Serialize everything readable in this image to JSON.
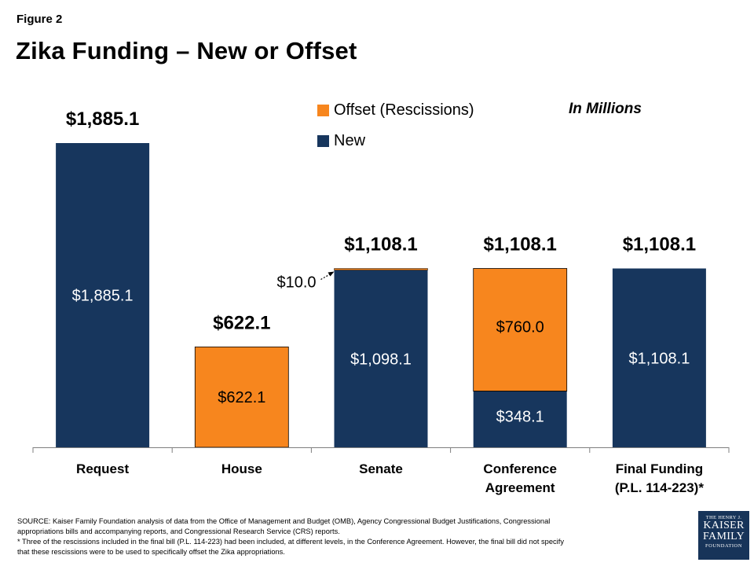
{
  "figure_label": "Figure 2",
  "title": "Zika Funding – New or Offset",
  "units_note": "In Millions",
  "legend": [
    {
      "label": "Offset (Rescissions)",
      "color": "#F7861E"
    },
    {
      "label": "New",
      "color": "#17365D"
    }
  ],
  "chart_data": {
    "type": "bar",
    "stacked": true,
    "title": "Zika Funding – New or Offset",
    "ylabel": "In Millions",
    "ylim": [
      0,
      2000
    ],
    "categories": [
      [
        "Request"
      ],
      [
        "House"
      ],
      [
        "Senate"
      ],
      [
        "Conference",
        "Agreement"
      ],
      [
        "Final Funding",
        "(P.L. 114-223)*"
      ]
    ],
    "series": [
      {
        "name": "New",
        "color": "#17365D",
        "values": [
          1885.1,
          0,
          1098.1,
          348.1,
          1108.1
        ],
        "labels": [
          "$1,885.1",
          "",
          "$1,098.1",
          "$348.1",
          "$1,108.1"
        ]
      },
      {
        "name": "Offset (Rescissions)",
        "color": "#F7861E",
        "values": [
          0,
          622.1,
          10.0,
          760.0,
          0
        ],
        "labels": [
          "",
          "$622.1",
          "",
          "$760.0",
          ""
        ]
      }
    ],
    "totals": [
      "$1,885.1",
      "$622.1",
      "$1,108.1",
      "$1,108.1",
      "$1,108.1"
    ],
    "annotations": [
      {
        "category_index": 2,
        "text": "$10.0",
        "series": "Offset (Rescissions)"
      }
    ]
  },
  "source_lines": [
    "SOURCE: Kaiser Family Foundation analysis of data from the Office of Management and Budget (OMB), Agency Congressional Budget Justifications, Congressional",
    "appropriations bills and accompanying reports, and Congressional Research Service (CRS) reports.",
    "* Three of the rescissions included in the final bill (P.L. 114-223) had been included, at different levels, in the Conference Agreement. However, the final bill did not specify",
    "that these rescissions were to be used to specifically offset the Zika appropriations."
  ],
  "logo": {
    "line1": "THE HENRY J.",
    "line2": "KAISER",
    "line3": "FAMILY",
    "line4": "FOUNDATION"
  }
}
